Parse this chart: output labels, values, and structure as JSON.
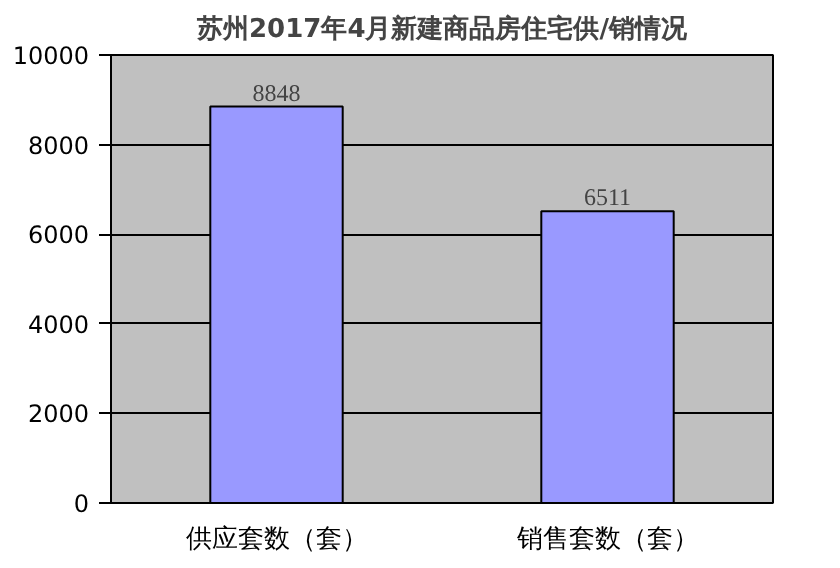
{
  "chart_data": {
    "type": "bar",
    "title": "苏州2017年4月新建商品房住宅供/销情况",
    "categories": [
      "供应套数（套）",
      "销售套数（套）"
    ],
    "values": [
      8848,
      6511
    ],
    "color": "#9999ff",
    "ylim": [
      0,
      10000
    ],
    "yticks": [
      0,
      2000,
      4000,
      6000,
      8000,
      10000
    ],
    "grid": "y",
    "data_labels": true
  }
}
